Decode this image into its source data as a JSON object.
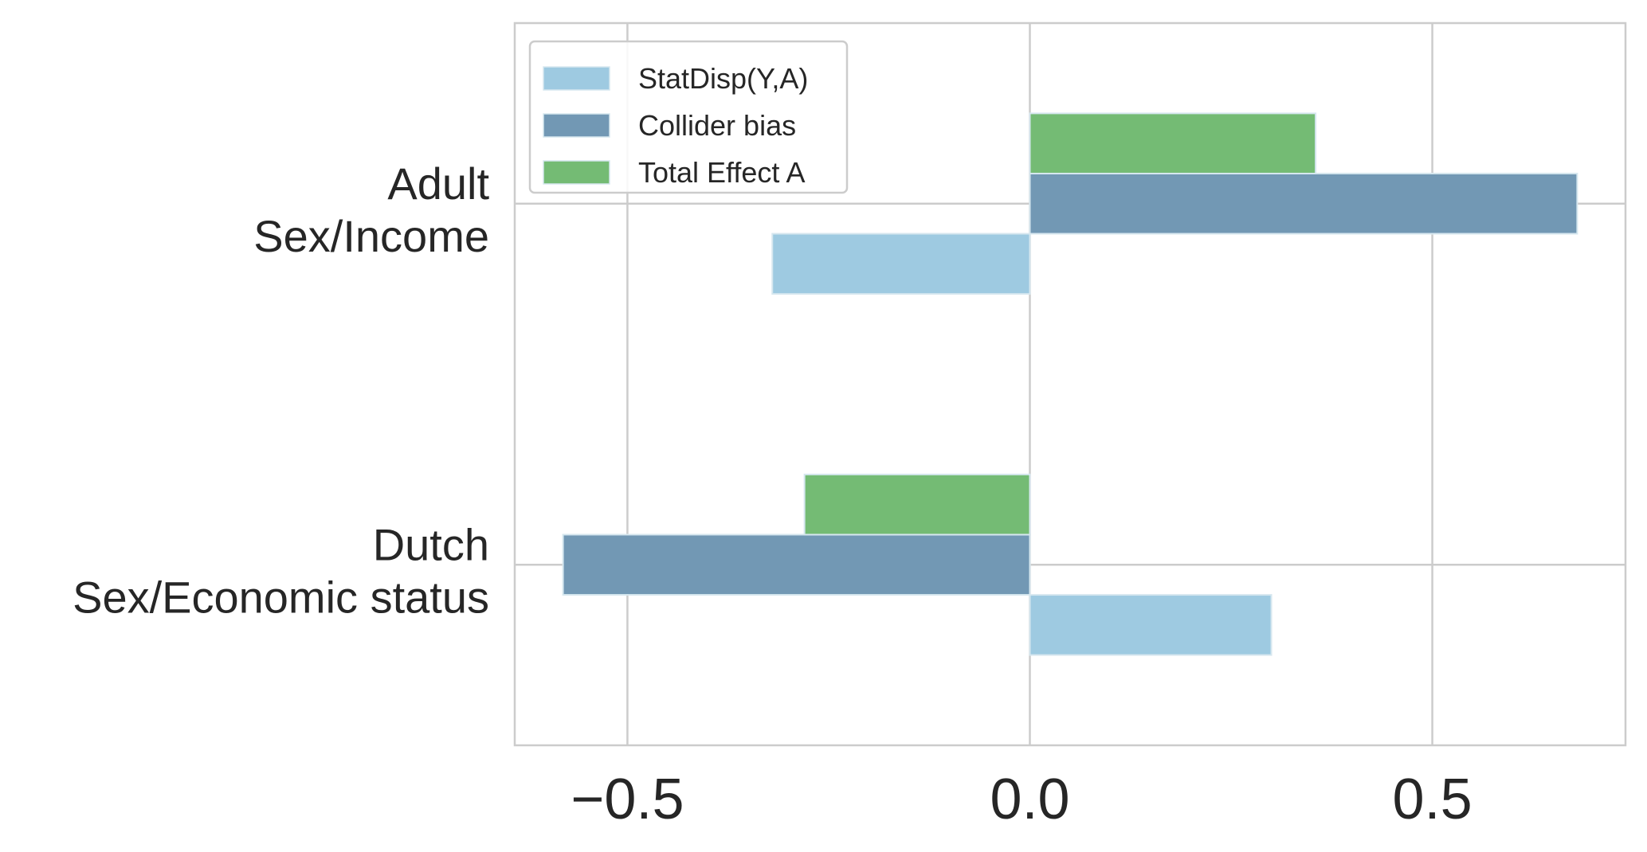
{
  "chart_data": {
    "type": "bar",
    "orientation": "horizontal",
    "title": "",
    "xlabel": "",
    "ylabel": "",
    "categories": [
      [
        "Adult",
        "Sex/Income"
      ],
      [
        "Dutch",
        "Sex/Economic status"
      ]
    ],
    "series": [
      {
        "name": "StatDisp(Y,A)",
        "color": "#9ecae1",
        "values": [
          -0.32,
          0.3
        ]
      },
      {
        "name": "Collider bias",
        "color": "#7298b4",
        "values": [
          0.68,
          -0.58
        ]
      },
      {
        "name": "Total Effect A",
        "color": "#74bb74",
        "values": [
          0.355,
          -0.28
        ]
      }
    ],
    "xlim": [
      -0.64,
      0.74
    ],
    "xticks": [
      -0.5,
      0.0,
      0.5
    ],
    "xtick_labels": [
      "−0.5",
      "0.0",
      "0.5"
    ],
    "grid": true,
    "legend_position": "top-left"
  }
}
